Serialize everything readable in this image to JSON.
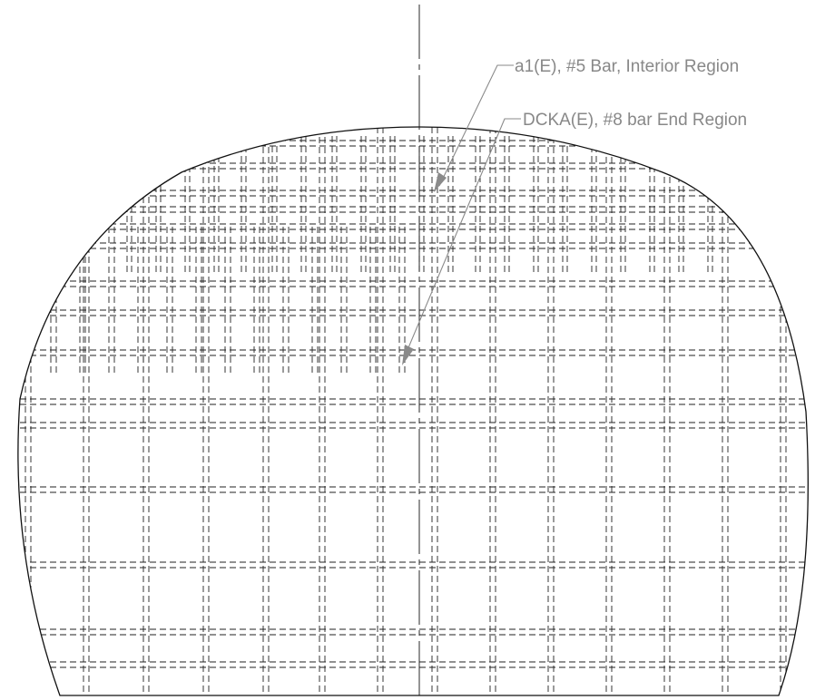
{
  "callouts": [
    {
      "id": "a1",
      "label": "a1(E), #5 Bar, Interior Region"
    },
    {
      "id": "dcka",
      "label": "DCKA(E), #8 bar End Region"
    }
  ],
  "colors": {
    "outline": "#111111",
    "rebar": "#222222",
    "leader": "#8a8a8a"
  }
}
